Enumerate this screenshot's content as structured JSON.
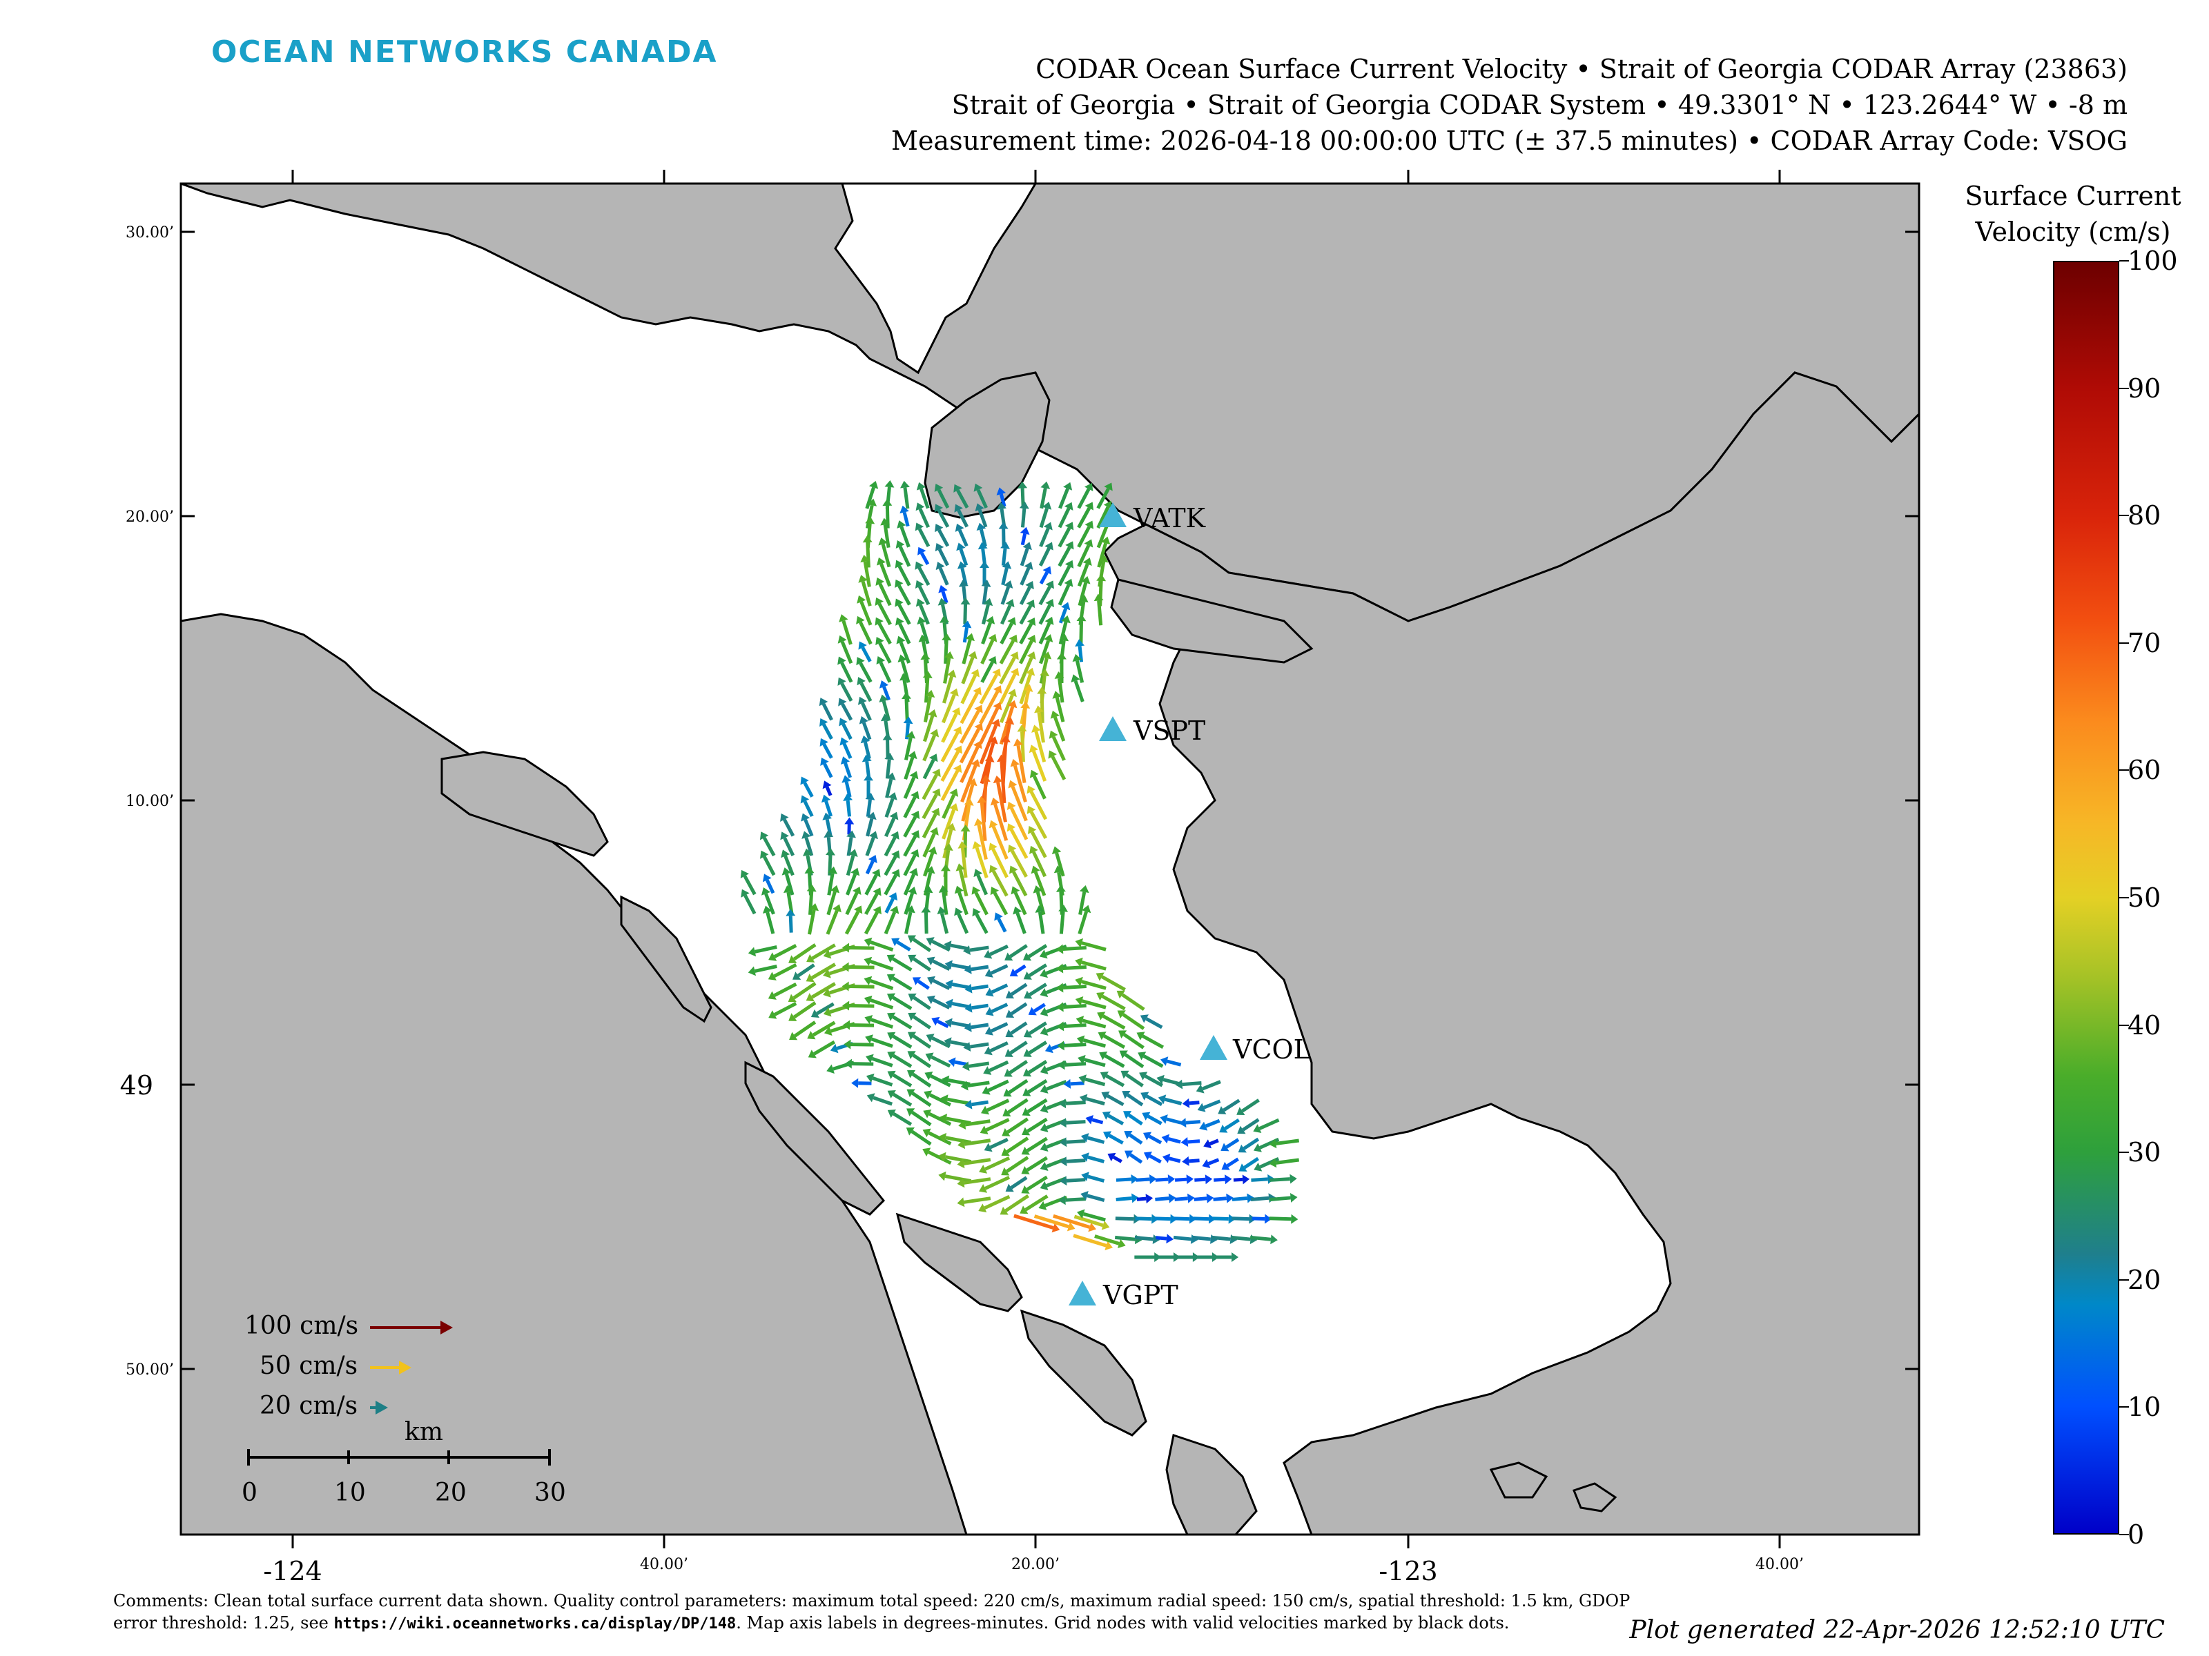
{
  "brand": "OCEAN NETWORKS CANADA",
  "title_lines": [
    "CODAR Ocean Surface Current Velocity • Strait of Georgia CODAR Array (23863)",
    "Strait of Georgia • Strait of Georgia CODAR System • 49.3301° N • 123.2644° W • -8 m",
    "Measurement time: 2026-04-18 00:00:00 UTC (± 37.5 minutes) • CODAR Array Code: VSOG"
  ],
  "axes": {
    "y_labels": [
      "30.00’",
      "20.00’",
      "10.00’",
      "49",
      "50.00’"
    ],
    "x_labels": [
      "-124",
      "40.00’",
      "20.00’",
      "-123",
      "40.00’"
    ]
  },
  "stations": [
    "VATK",
    "VSPT",
    "VCOL",
    "VGPT"
  ],
  "colorbar": {
    "title_line1": "Surface Current",
    "title_line2": "Velocity (cm/s)",
    "ticks": [
      "0",
      "10",
      "20",
      "30",
      "40",
      "50",
      "60",
      "70",
      "80",
      "90",
      "100"
    ],
    "min": 0,
    "max": 100
  },
  "vector_legend": [
    {
      "label": "100 cm/s",
      "speed": 100,
      "color": "#7a0000"
    },
    {
      "label": "50 cm/s",
      "speed": 50,
      "color": "#f2c21c"
    },
    {
      "label": "20 cm/s",
      "speed": 20,
      "color": "#1d7f86"
    }
  ],
  "scale_bar": {
    "unit": "km",
    "ticks": [
      "0",
      "10",
      "20",
      "30"
    ]
  },
  "comments_prefix": "Comments: Clean total surface current data shown. Quality control parameters: maximum total speed: 220 cm/s, maximum radial speed: 150 cm/s, spatial threshold: 1.5 km, GDOP error threshold: 1.25, see ",
  "comments_url": "https://wiki.oceannetworks.ca/display/DP/148",
  "comments_suffix": ". Map axis labels in degrees-minutes. Grid nodes with valid velocities marked by black dots.",
  "plot_generated": "Plot generated 22-Apr-2026 12:52:10 UTC",
  "colors": {
    "brand": "#1aa0c8",
    "land": "#b5b5b5",
    "water": "#ffffff",
    "station": "#45b3d6"
  }
}
